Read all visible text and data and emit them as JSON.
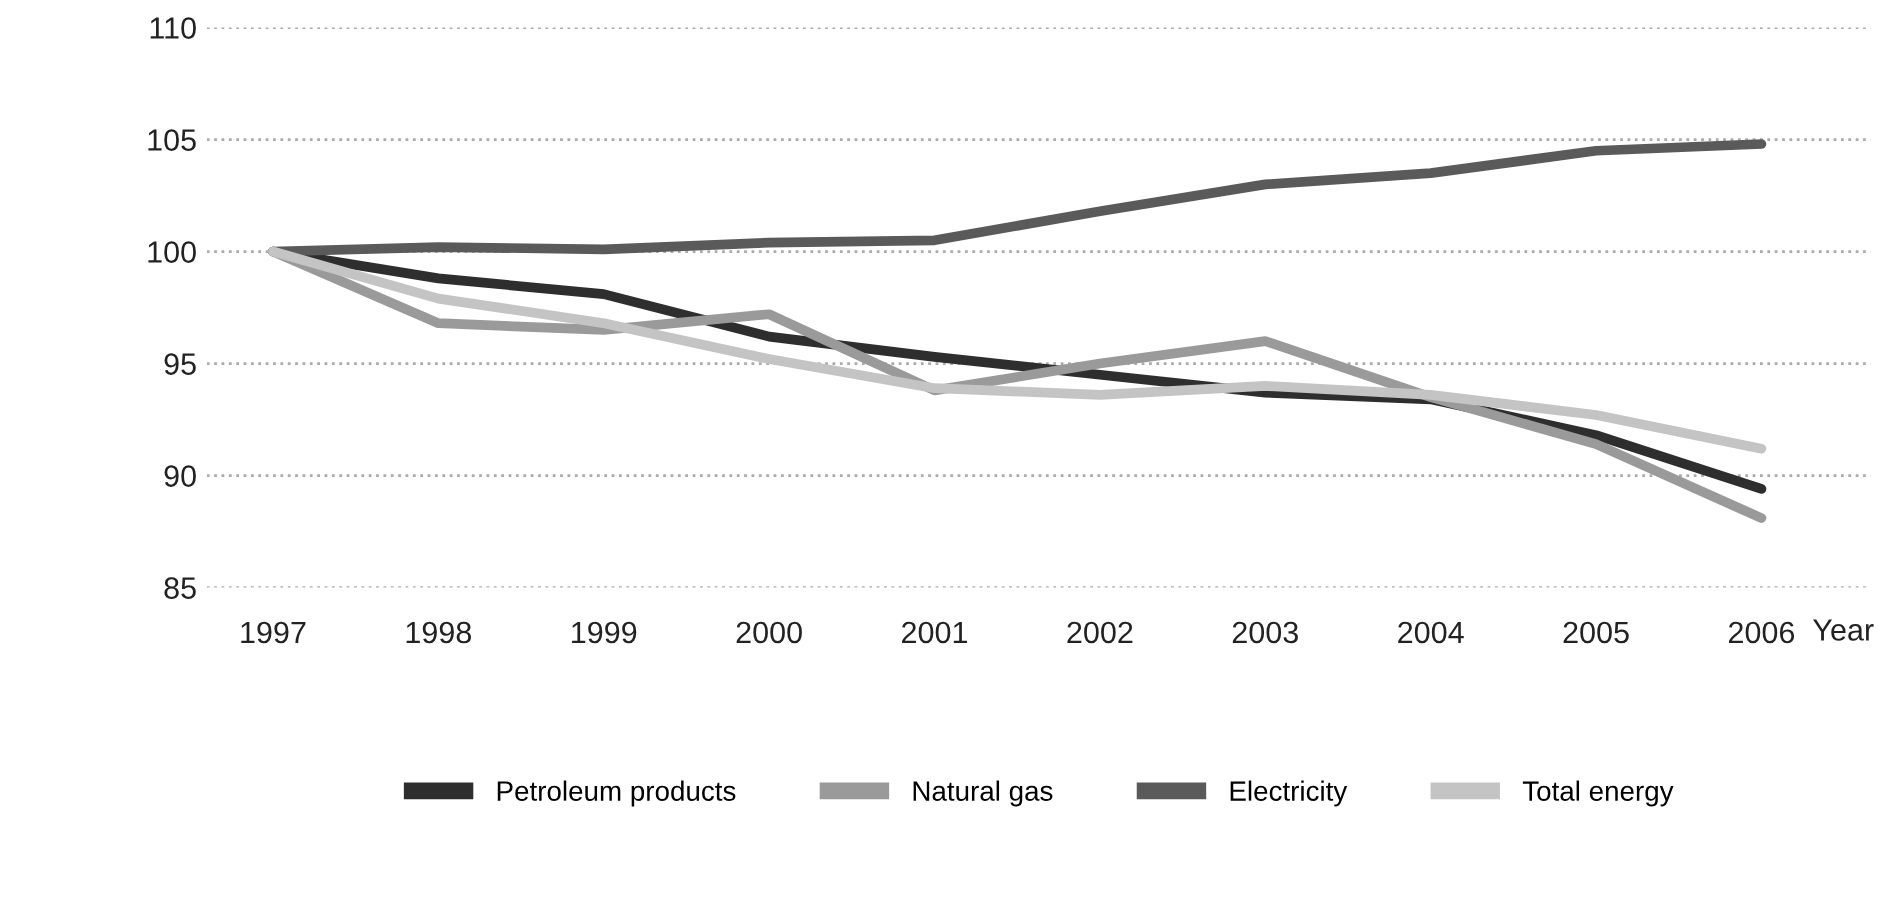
{
  "chart_data": {
    "type": "line",
    "xlabel": "Year",
    "x": [
      1997,
      1998,
      1999,
      2000,
      2001,
      2002,
      2003,
      2004,
      2005,
      2006
    ],
    "series": [
      {
        "name": "Petroleum products",
        "color": "#2e2e2e",
        "values": [
          100,
          98.8,
          98.1,
          96.2,
          95.3,
          94.5,
          93.7,
          93.4,
          91.8,
          89.4
        ]
      },
      {
        "name": "Natural gas",
        "color": "#9a9a9a",
        "values": [
          100,
          96.8,
          96.5,
          97.2,
          93.8,
          95.0,
          96.0,
          93.5,
          91.4,
          88.1
        ]
      },
      {
        "name": "Electricity",
        "color": "#5a5a5a",
        "values": [
          100,
          100.2,
          100.1,
          100.4,
          100.5,
          101.8,
          103.0,
          103.5,
          104.5,
          104.8
        ]
      },
      {
        "name": "Total energy",
        "color": "#c4c4c4",
        "values": [
          100,
          97.9,
          96.8,
          95.2,
          93.9,
          93.6,
          94.0,
          93.6,
          92.7,
          91.2
        ]
      }
    ],
    "xlim": [
      1996.6,
      2006.66
    ],
    "xticks": [
      1997,
      1998,
      1999,
      2000,
      2001,
      2002,
      2003,
      2004,
      2005,
      2006
    ],
    "ylim": [
      85,
      110
    ],
    "yticks": [
      85,
      90,
      95,
      100,
      105,
      110
    ],
    "grid": "y",
    "legend": "bottom",
    "marker": "none",
    "line_style": "solid"
  }
}
